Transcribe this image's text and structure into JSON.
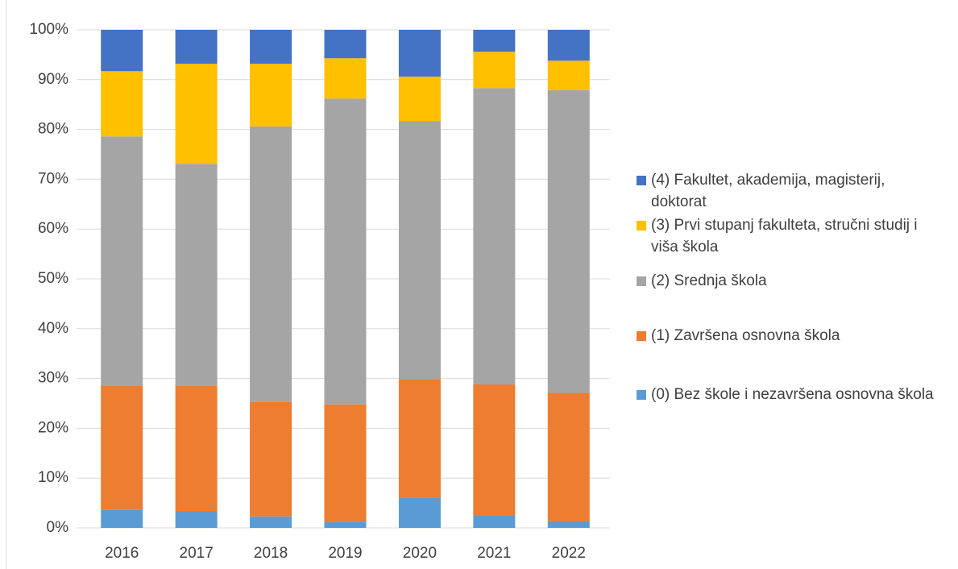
{
  "chart_data": {
    "type": "stacked_bar",
    "categories": [
      "2016",
      "2017",
      "2018",
      "2019",
      "2020",
      "2021",
      "2022"
    ],
    "series": [
      {
        "name": "(0) Bez škole i nezavršena osnovna škola",
        "color": "#5b9bd5",
        "values": [
          3.6,
          3.4,
          2.3,
          1.2,
          6.0,
          2.5,
          1.3
        ]
      },
      {
        "name": "(1) Završena osnovna škola",
        "color": "#ed7d31",
        "values": [
          25.0,
          25.2,
          23.0,
          23.6,
          23.9,
          26.3,
          25.8
        ]
      },
      {
        "name": "(2) Srednja škola",
        "color": "#a5a5a5",
        "values": [
          50.0,
          44.5,
          55.3,
          61.4,
          51.8,
          59.5,
          60.8
        ]
      },
      {
        "name": "(3) Prvi stupanj fakulteta, stručni studij i viša škola",
        "color": "#ffc000",
        "values": [
          13.1,
          20.1,
          12.6,
          8.1,
          8.9,
          7.3,
          5.9
        ]
      },
      {
        "name": "(4) Fakultet, akademija, magisterij, doktorat",
        "color": "#4472c4",
        "values": [
          8.3,
          6.8,
          6.8,
          5.7,
          9.4,
          4.4,
          6.2
        ]
      }
    ],
    "ylim": [
      0,
      100
    ],
    "yticks": [
      {
        "value": 0,
        "label": "0%"
      },
      {
        "value": 10,
        "label": "10%"
      },
      {
        "value": 20,
        "label": "20%"
      },
      {
        "value": 30,
        "label": "30%"
      },
      {
        "value": 40,
        "label": "40%"
      },
      {
        "value": 50,
        "label": "50%"
      },
      {
        "value": 60,
        "label": "60%"
      },
      {
        "value": 70,
        "label": "70%"
      },
      {
        "value": 80,
        "label": "80%"
      },
      {
        "value": 90,
        "label": "90%"
      },
      {
        "value": 100,
        "label": "100%"
      }
    ],
    "grid": true,
    "legend": "right"
  }
}
